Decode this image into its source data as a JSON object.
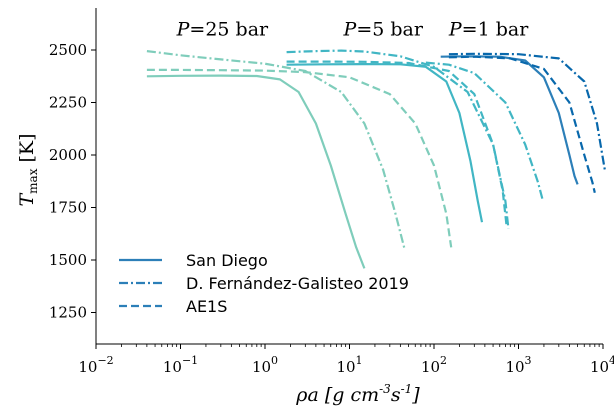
{
  "chart_data": {
    "type": "line",
    "xscale": "log",
    "xlim": [
      0.01,
      10000
    ],
    "ylim": [
      1100,
      2700
    ],
    "grid": false,
    "xlabel": "ρa [g cm⁻³s⁻¹]",
    "ylabel": "T_max [K]",
    "xlabel_main": "ρa ",
    "xlabel_unit": "[g cm",
    "xlabel_sup1": "-3",
    "xlabel_mid": "s",
    "xlabel_sup2": "-1",
    "xlabel_end": "]",
    "ylabel_main": "T",
    "ylabel_sub": "max",
    "ylabel_unit": " [K]",
    "xtick_base": "10",
    "xticks": [
      {
        "value": 0.01,
        "exp": "−2"
      },
      {
        "value": 0.1,
        "exp": "−1"
      },
      {
        "value": 1,
        "exp": "0"
      },
      {
        "value": 10,
        "exp": "1"
      },
      {
        "value": 100,
        "exp": "2"
      },
      {
        "value": 1000,
        "exp": "3"
      },
      {
        "value": 10000,
        "exp": "4"
      }
    ],
    "yticks": [
      {
        "value": 1250,
        "label": "1250"
      },
      {
        "value": 1500,
        "label": "1500"
      },
      {
        "value": 1750,
        "label": "1750"
      },
      {
        "value": 2000,
        "label": "2000"
      },
      {
        "value": 2250,
        "label": "2250"
      },
      {
        "value": 2500,
        "label": "2500"
      }
    ],
    "annotations": [
      {
        "text": "P=25 bar",
        "x": 0.09,
        "y": 2570
      },
      {
        "text": "P=5 bar",
        "x": 8.5,
        "y": 2570
      },
      {
        "text": "P=1 bar",
        "x": 150,
        "y": 2570
      }
    ],
    "legend_position": "lower-left",
    "legend": [
      {
        "label": "San Diego",
        "style": "solid"
      },
      {
        "label": "D. Fernández-Galisteo 2019",
        "style": "dashdot"
      },
      {
        "label": "AE1S",
        "style": "dashed"
      }
    ],
    "series": [
      {
        "pressure": "25 bar",
        "model": "San Diego",
        "style": "solid",
        "color": "#7fcdbb",
        "x": [
          0.04,
          0.1,
          0.3,
          0.8,
          1.5,
          2.5,
          4,
          6,
          9,
          12,
          15
        ],
        "y": [
          2375,
          2377,
          2378,
          2376,
          2360,
          2300,
          2150,
          1950,
          1720,
          1560,
          1460
        ]
      },
      {
        "pressure": "25 bar",
        "model": "D. Fernández-Galisteo 2019",
        "style": "dashdot",
        "color": "#7fcdbb",
        "x": [
          0.04,
          0.1,
          0.3,
          1,
          3,
          8,
          15,
          25,
          35,
          45
        ],
        "y": [
          2495,
          2475,
          2455,
          2435,
          2400,
          2300,
          2150,
          1930,
          1720,
          1550
        ]
      },
      {
        "pressure": "25 bar",
        "model": "AE1S",
        "style": "dashed",
        "color": "#7fcdbb",
        "x": [
          0.04,
          0.1,
          0.3,
          1,
          3,
          10,
          30,
          60,
          100,
          140,
          160
        ],
        "y": [
          2405,
          2405,
          2404,
          2402,
          2395,
          2370,
          2290,
          2150,
          1950,
          1720,
          1560
        ]
      },
      {
        "pressure": "5 bar",
        "model": "San Diego",
        "style": "solid",
        "color": "#41b6c4",
        "x": [
          1.8,
          5,
          15,
          40,
          80,
          140,
          200,
          270,
          330,
          370
        ],
        "y": [
          2430,
          2432,
          2433,
          2432,
          2420,
          2350,
          2200,
          1970,
          1780,
          1680
        ]
      },
      {
        "pressure": "5 bar",
        "model": "D. Fernández-Galisteo 2019",
        "style": "dashdot",
        "color": "#41b6c4",
        "x": [
          1.8,
          4,
          8,
          15,
          40,
          100,
          250,
          500,
          700,
          760
        ],
        "y": [
          2490,
          2495,
          2497,
          2493,
          2470,
          2420,
          2300,
          2050,
          1780,
          1650
        ]
      },
      {
        "pressure": "5 bar",
        "model": "AE1S",
        "style": "dashed",
        "color": "#41b6c4",
        "x": [
          1.8,
          5,
          15,
          50,
          150,
          300,
          500,
          650,
          720
        ],
        "y": [
          2445,
          2445,
          2444,
          2438,
          2400,
          2290,
          2050,
          1830,
          1670
        ]
      },
      {
        "pressure": "1 bar",
        "model": "San Diego",
        "style": "solid",
        "color": "#2c7fb8",
        "x": [
          120,
          250,
          600,
          1200,
          2000,
          3000,
          4000,
          4600,
          5000
        ],
        "y": [
          2468,
          2470,
          2468,
          2450,
          2370,
          2200,
          2000,
          1900,
          1860
        ]
      },
      {
        "pressure": "1 bar",
        "model": "D. Fernández-Galisteo 2019",
        "style": "dashdot",
        "color": "#41b6c4",
        "x": [
          80,
          150,
          300,
          700,
          1200,
          1700,
          1950
        ],
        "y": [
          2440,
          2430,
          2390,
          2250,
          2050,
          1870,
          1780
        ]
      },
      {
        "pressure": "1 bar",
        "model": "AE1S",
        "style": "dashed",
        "color": "#0868ac",
        "x": [
          150,
          300,
          800,
          2000,
          4000,
          6000,
          7500,
          8000
        ],
        "y": [
          2465,
          2468,
          2460,
          2410,
          2250,
          2000,
          1870,
          1820
        ]
      },
      {
        "pressure": "1 bar",
        "model": "D. Fernández-Galisteo 2019",
        "style": "dashdot",
        "color": "#0868ac",
        "x": [
          150,
          300,
          1000,
          3000,
          6000,
          8500,
          9800,
          10500
        ],
        "y": [
          2480,
          2482,
          2480,
          2460,
          2350,
          2150,
          2000,
          1930
        ]
      }
    ]
  }
}
